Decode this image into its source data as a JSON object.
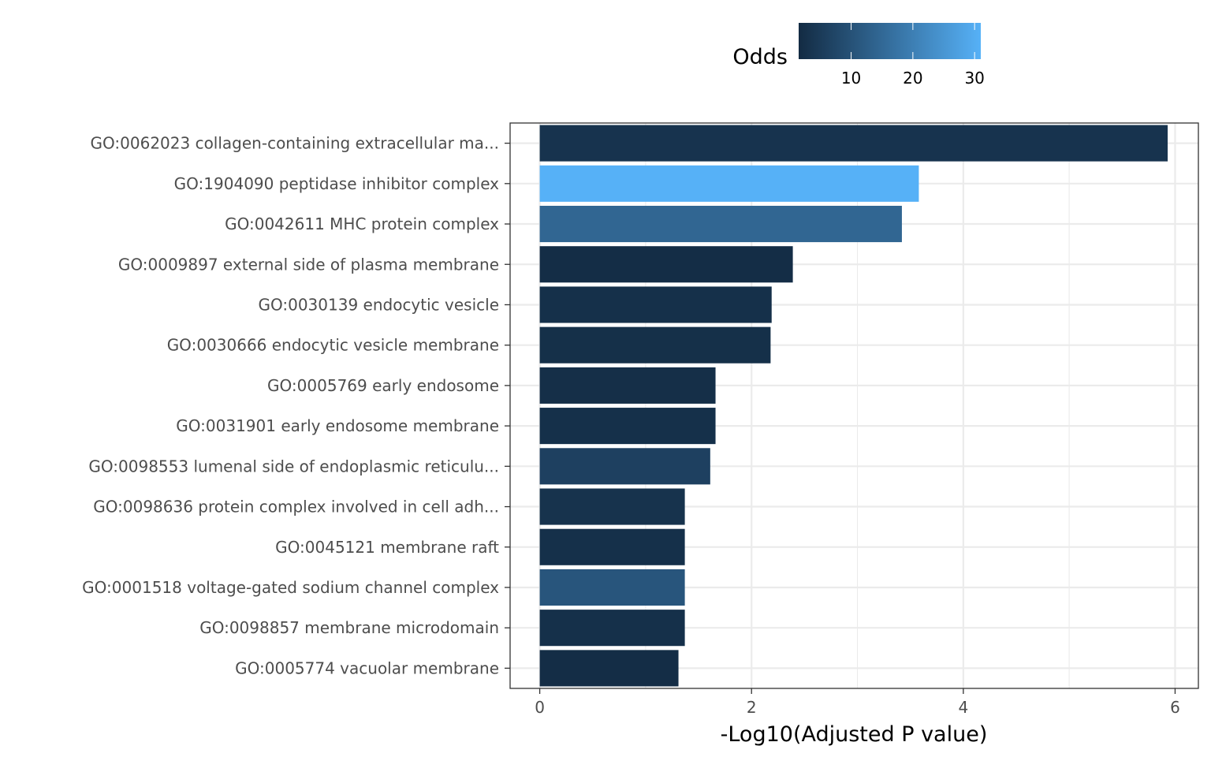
{
  "chart_data": {
    "type": "bar",
    "orientation": "horizontal",
    "xlabel": "-Log10(Adjusted P value)",
    "ylabel": "",
    "xlim": [
      -0.28,
      6.22
    ],
    "x_ticks": [
      0,
      2,
      4,
      6
    ],
    "grid": true,
    "legend": {
      "title": "Odds",
      "placement": "top",
      "range": [
        1.5,
        31
      ],
      "ticks": [
        10,
        20,
        30
      ],
      "color_low": "#132B43",
      "color_high": "#56B1F7"
    },
    "categories": [
      "GO:0062023 collagen-containing extracellular ma...",
      "GO:1904090 peptidase inhibitor complex",
      "GO:0042611 MHC protein complex",
      "GO:0009897 external side of plasma membrane",
      "GO:0030139 endocytic vesicle",
      "GO:0030666 endocytic vesicle membrane",
      "GO:0005769 early endosome",
      "GO:0031901 early endosome membrane",
      "GO:0098553 lumenal side of endoplasmic reticulu...",
      "GO:0098636 protein complex involved in cell adh...",
      "GO:0045121 membrane raft",
      "GO:0001518 voltage-gated sodium channel complex",
      "GO:0098857 membrane microdomain",
      "GO:0005774 vacuolar membrane"
    ],
    "values": [
      5.93,
      3.58,
      3.42,
      2.39,
      2.19,
      2.18,
      1.66,
      1.66,
      1.61,
      1.37,
      1.37,
      1.37,
      1.37,
      1.31
    ],
    "odds": [
      3.3,
      31.0,
      14.5,
      2.0,
      2.6,
      2.5,
      2.3,
      2.6,
      6.2,
      3.2,
      2.6,
      10.8,
      2.6,
      2.0
    ]
  }
}
